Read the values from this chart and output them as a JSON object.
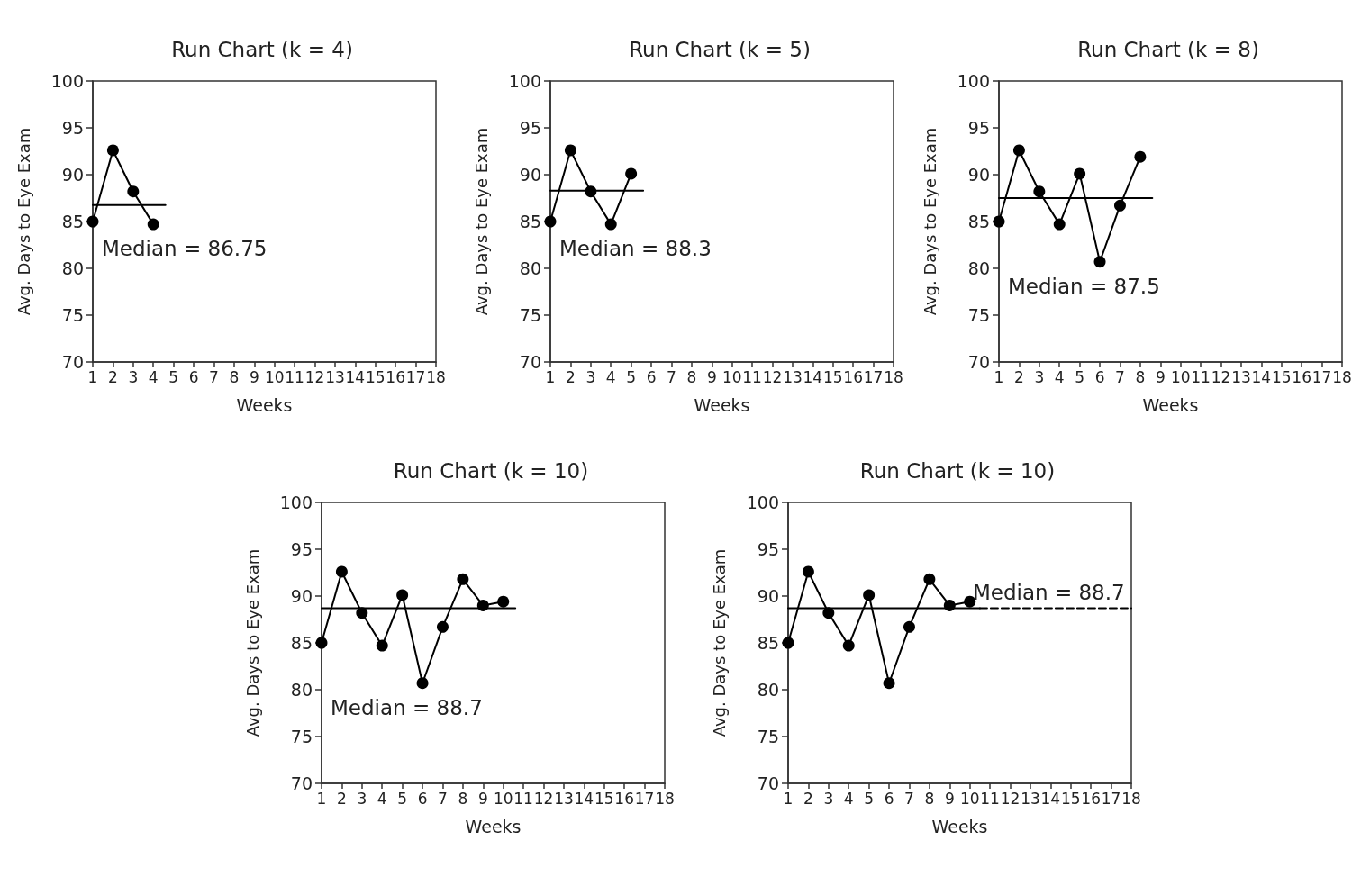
{
  "chart_data": [
    {
      "type": "line",
      "title": "Run Chart (k = 4)",
      "xlabel": "Weeks",
      "ylabel": "Avg. Days to Eye Exam",
      "xlim": [
        1,
        18
      ],
      "xticks": [
        1,
        2,
        3,
        4,
        5,
        6,
        7,
        8,
        9,
        10,
        11,
        12,
        13,
        14,
        15,
        16,
        17,
        18
      ],
      "ylim": [
        70,
        100
      ],
      "yticks": [
        70,
        75,
        80,
        85,
        90,
        95,
        100
      ],
      "grid": false,
      "annotations": [
        "Median = 86.75"
      ],
      "series": [
        {
          "color": "#000000",
          "marker": "circle",
          "x": [
            1,
            2,
            3,
            4
          ],
          "values": [
            85,
            92.6,
            88.2,
            84.7
          ]
        },
        {
          "color": "#000000",
          "marker": "none",
          "line_style": "solid",
          "x": [
            1,
            4.6
          ],
          "values": [
            86.75,
            86.75
          ]
        }
      ]
    },
    {
      "type": "line",
      "title": "Run Chart (k = 5)",
      "xlabel": "Weeks",
      "ylabel": "Avg. Days to Eye Exam",
      "xlim": [
        1,
        18
      ],
      "xticks": [
        1,
        2,
        3,
        4,
        5,
        6,
        7,
        8,
        9,
        10,
        11,
        12,
        13,
        14,
        15,
        16,
        17,
        18
      ],
      "ylim": [
        70,
        100
      ],
      "yticks": [
        70,
        75,
        80,
        85,
        90,
        95,
        100
      ],
      "grid": false,
      "annotations": [
        "Median = 88.3"
      ],
      "series": [
        {
          "color": "#000000",
          "marker": "circle",
          "x": [
            1,
            2,
            3,
            4,
            5
          ],
          "values": [
            85,
            92.6,
            88.2,
            84.7,
            90.1
          ]
        },
        {
          "color": "#000000",
          "marker": "none",
          "line_style": "solid",
          "x": [
            1,
            5.6
          ],
          "values": [
            88.3,
            88.3
          ]
        }
      ]
    },
    {
      "type": "line",
      "title": "Run Chart (k = 8)",
      "xlabel": "Weeks",
      "ylabel": "Avg. Days to Eye Exam",
      "xlim": [
        1,
        18
      ],
      "xticks": [
        1,
        2,
        3,
        4,
        5,
        6,
        7,
        8,
        9,
        10,
        11,
        12,
        13,
        14,
        15,
        16,
        17,
        18
      ],
      "ylim": [
        70,
        100
      ],
      "yticks": [
        70,
        75,
        80,
        85,
        90,
        95,
        100
      ],
      "grid": false,
      "annotations": [
        "Median = 87.5"
      ],
      "series": [
        {
          "color": "#000000",
          "marker": "circle",
          "x": [
            1,
            2,
            3,
            4,
            5,
            6,
            7,
            8
          ],
          "values": [
            85,
            92.6,
            88.2,
            84.7,
            90.1,
            80.7,
            86.7,
            91.9
          ]
        },
        {
          "color": "#000000",
          "marker": "none",
          "line_style": "solid",
          "x": [
            1,
            8.6
          ],
          "values": [
            87.5,
            87.5
          ]
        }
      ]
    },
    {
      "type": "line",
      "title": "Run Chart (k = 10)",
      "xlabel": "Weeks",
      "ylabel": "Avg. Days to Eye Exam",
      "xlim": [
        1,
        18
      ],
      "xticks": [
        1,
        2,
        3,
        4,
        5,
        6,
        7,
        8,
        9,
        10,
        11,
        12,
        13,
        14,
        15,
        16,
        17,
        18
      ],
      "ylim": [
        70,
        100
      ],
      "yticks": [
        70,
        75,
        80,
        85,
        90,
        95,
        100
      ],
      "grid": false,
      "annotations": [
        "Median = 88.7"
      ],
      "series": [
        {
          "color": "#000000",
          "marker": "circle",
          "x": [
            1,
            2,
            3,
            4,
            5,
            6,
            7,
            8,
            9,
            10
          ],
          "values": [
            85,
            92.6,
            88.2,
            84.7,
            90.1,
            80.7,
            86.7,
            91.8,
            89.0,
            89.4
          ]
        },
        {
          "color": "#000000",
          "marker": "none",
          "line_style": "solid",
          "x": [
            1,
            10.6
          ],
          "values": [
            88.7,
            88.7
          ]
        }
      ]
    },
    {
      "type": "line",
      "title": "Run Chart (k = 10)",
      "xlabel": "Weeks",
      "ylabel": "Avg. Days to Eye Exam",
      "xlim": [
        1,
        18
      ],
      "xticks": [
        1,
        2,
        3,
        4,
        5,
        6,
        7,
        8,
        9,
        10,
        11,
        12,
        13,
        14,
        15,
        16,
        17,
        18
      ],
      "ylim": [
        70,
        100
      ],
      "yticks": [
        70,
        75,
        80,
        85,
        90,
        95,
        100
      ],
      "grid": false,
      "annotations": [
        "Median = 88.7"
      ],
      "series": [
        {
          "color": "#000000",
          "marker": "circle",
          "x": [
            1,
            2,
            3,
            4,
            5,
            6,
            7,
            8,
            9,
            10
          ],
          "values": [
            85,
            92.6,
            88.2,
            84.7,
            90.1,
            80.7,
            86.7,
            91.8,
            89.0,
            89.4
          ]
        },
        {
          "color": "#000000",
          "marker": "none",
          "line_style": "solid",
          "x": [
            1,
            10.5
          ],
          "values": [
            88.7,
            88.7
          ]
        },
        {
          "color": "#000000",
          "marker": "none",
          "line_style": "dashed",
          "x": [
            10.5,
            18
          ],
          "values": [
            88.7,
            88.7
          ]
        }
      ]
    }
  ]
}
